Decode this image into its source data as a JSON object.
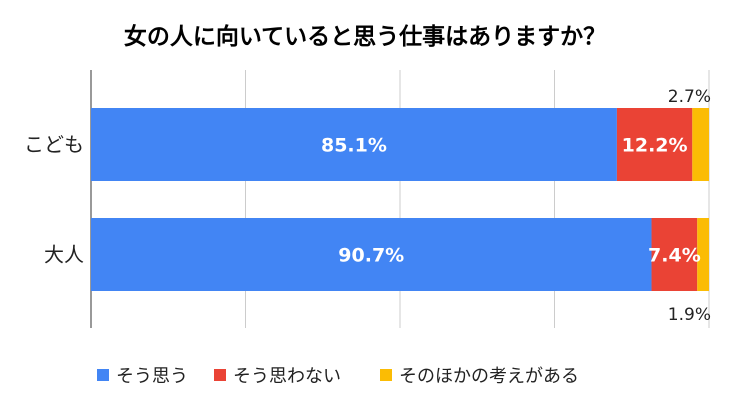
{
  "chart_data": {
    "type": "bar",
    "orientation": "horizontal",
    "stacked": true,
    "title": "女の人に向いていると思う仕事はありますか？",
    "categories": [
      "こども",
      "大人"
    ],
    "series": [
      {
        "name": "そう思う",
        "color": "#4285f4",
        "values": [
          85.1,
          90.7
        ],
        "labels": [
          "85.1%",
          "90.7%"
        ]
      },
      {
        "name": "そう思わない",
        "color": "#ea4335",
        "values": [
          12.2,
          7.4
        ],
        "labels": [
          "12.2%",
          "7.4%"
        ]
      },
      {
        "name": "そのほかの考えがある",
        "color": "#fbbc04",
        "values": [
          2.7,
          1.9
        ],
        "labels": [
          "2.7%",
          "1.9%"
        ]
      }
    ],
    "xlim": [
      0,
      100
    ],
    "grid": true,
    "legend_position": "bottom"
  }
}
